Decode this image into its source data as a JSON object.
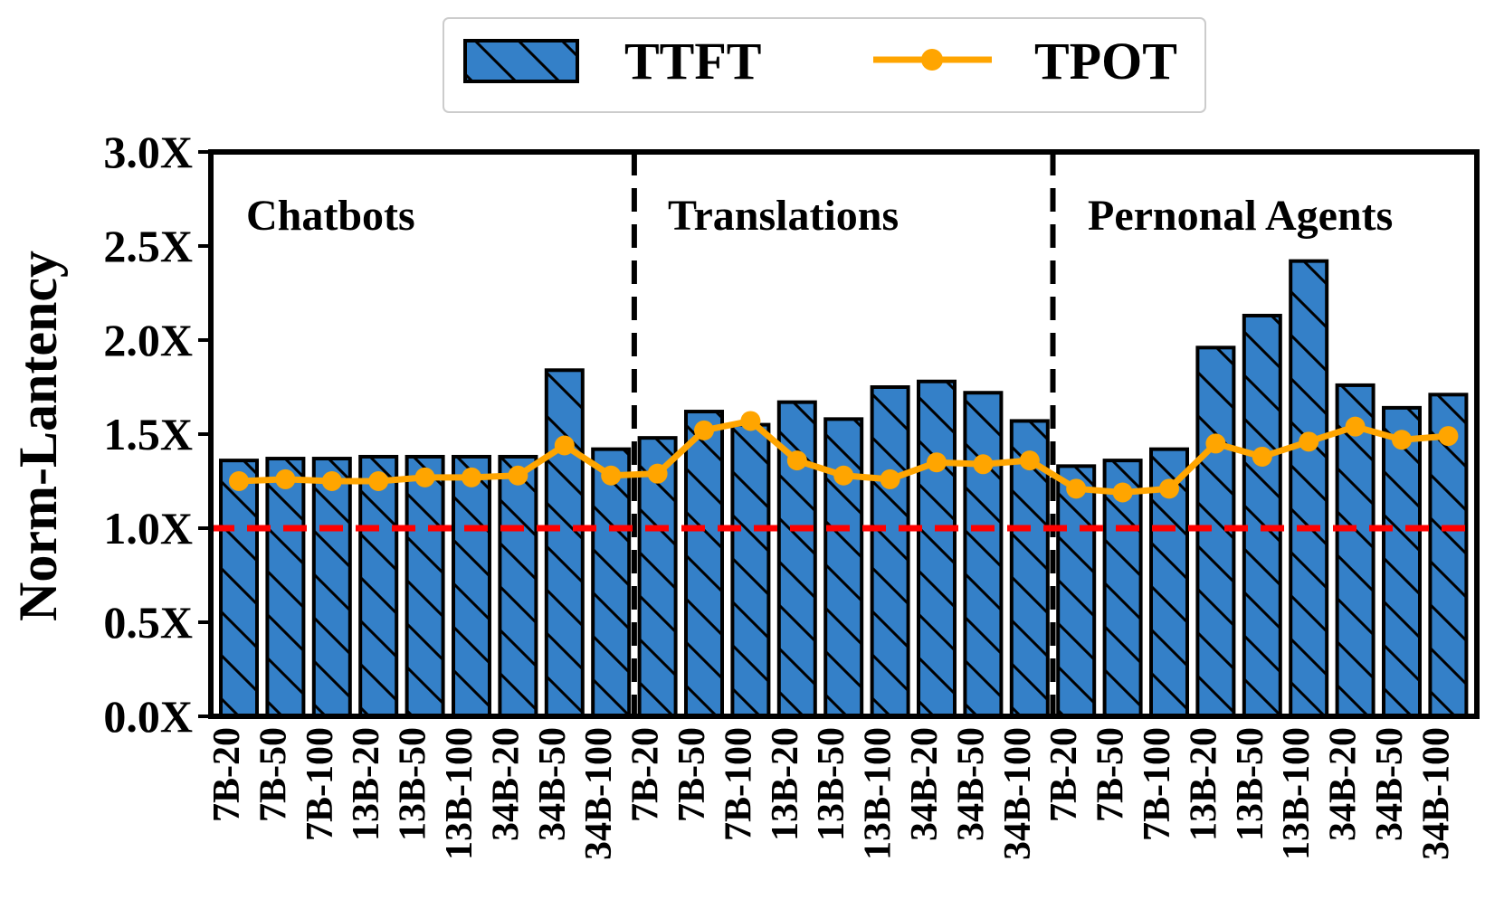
{
  "chart_data": {
    "type": "bar",
    "ylabel": "Norm-Lantency",
    "ylim": [
      0,
      3.0
    ],
    "yticks": [
      "0.0X",
      "0.5X",
      "1.0X",
      "1.5X",
      "2.0X",
      "2.5X",
      "3.0X"
    ],
    "ytick_values": [
      0,
      0.5,
      1.0,
      1.5,
      2.0,
      2.5,
      3.0
    ],
    "categories": [
      "7B-20",
      "7B-50",
      "7B-100",
      "13B-20",
      "13B-50",
      "13B-100",
      "34B-20",
      "34B-50",
      "34B-100",
      "7B-20",
      "7B-50",
      "7B-100",
      "13B-20",
      "13B-50",
      "13B-100",
      "34B-20",
      "34B-50",
      "34B-100",
      "7B-20",
      "7B-50",
      "7B-100",
      "13B-20",
      "13B-50",
      "13B-100",
      "34B-20",
      "34B-50",
      "34B-100"
    ],
    "groups": [
      "Chatbots",
      "Translations",
      "Pernonal Agents"
    ],
    "series": [
      {
        "name": "TTFT",
        "kind": "bar",
        "color": "#3480c8",
        "values": [
          1.36,
          1.37,
          1.37,
          1.38,
          1.38,
          1.38,
          1.38,
          1.84,
          1.42,
          1.48,
          1.62,
          1.55,
          1.67,
          1.58,
          1.75,
          1.78,
          1.72,
          1.57,
          1.33,
          1.36,
          1.42,
          1.96,
          2.13,
          2.42,
          1.76,
          1.64,
          1.71
        ]
      },
      {
        "name": "TPOT",
        "kind": "line",
        "color": "#ffa500",
        "values": [
          1.25,
          1.26,
          1.25,
          1.25,
          1.27,
          1.27,
          1.28,
          1.44,
          1.28,
          1.29,
          1.52,
          1.57,
          1.36,
          1.28,
          1.26,
          1.35,
          1.34,
          1.36,
          1.21,
          1.19,
          1.21,
          1.45,
          1.38,
          1.46,
          1.54,
          1.47,
          1.49
        ]
      }
    ],
    "reference_line": {
      "value": 1.0,
      "color": "#ff0000",
      "style": "dashed"
    },
    "legend": {
      "position": "top-center",
      "entries": [
        "TTFT",
        "TPOT"
      ]
    }
  }
}
